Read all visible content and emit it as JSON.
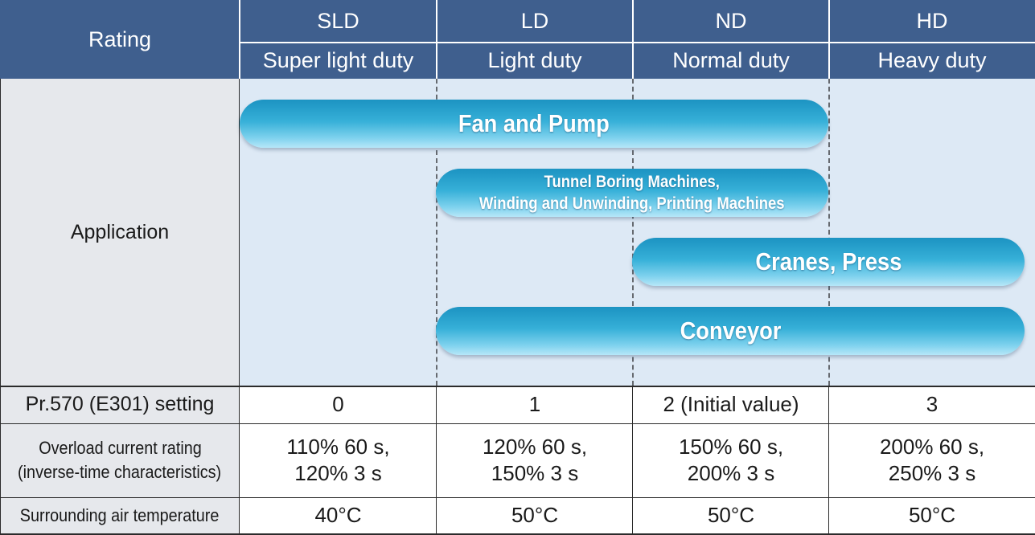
{
  "header": {
    "rating_label": "Rating",
    "columns": [
      {
        "code": "SLD",
        "name": "Super light duty"
      },
      {
        "code": "LD",
        "name": "Light duty"
      },
      {
        "code": "ND",
        "name": "Normal duty"
      },
      {
        "code": "HD",
        "name": "Heavy duty"
      }
    ]
  },
  "application": {
    "label": "Application",
    "bars": [
      {
        "label": "Fan and Pump",
        "applies_to": [
          "SLD",
          "LD",
          "ND"
        ]
      },
      {
        "label_line1": "Tunnel Boring Machines,",
        "label_line2": "Winding and Unwinding, Printing Machines",
        "applies_to": [
          "LD",
          "ND"
        ]
      },
      {
        "label": "Cranes, Press",
        "applies_to": [
          "ND",
          "HD"
        ]
      },
      {
        "label": "Conveyor",
        "applies_to": [
          "LD",
          "ND",
          "HD"
        ]
      }
    ]
  },
  "rows": [
    {
      "label": "Pr.570 (E301) setting",
      "values": [
        "0",
        "1",
        "2 (Initial value)",
        "3"
      ]
    },
    {
      "label_line1": "Overload current rating",
      "label_line2": "(inverse-time characteristics)",
      "values": [
        {
          "line1": "110% 60 s,",
          "line2": "120% 3 s"
        },
        {
          "line1": "120% 60 s,",
          "line2": "150% 3 s"
        },
        {
          "line1": "150% 60 s,",
          "line2": "200% 3 s"
        },
        {
          "line1": "200% 60 s,",
          "line2": "250% 3 s"
        }
      ]
    },
    {
      "label": "Surrounding air temperature",
      "values": [
        "40°C",
        "50°C",
        "50°C",
        "50°C"
      ]
    }
  ],
  "colors": {
    "header_bg": "#3f5f8e",
    "label_bg": "#e6e8ec",
    "application_bg": "#dde9f5",
    "bar_color": "#2aa7d4"
  }
}
